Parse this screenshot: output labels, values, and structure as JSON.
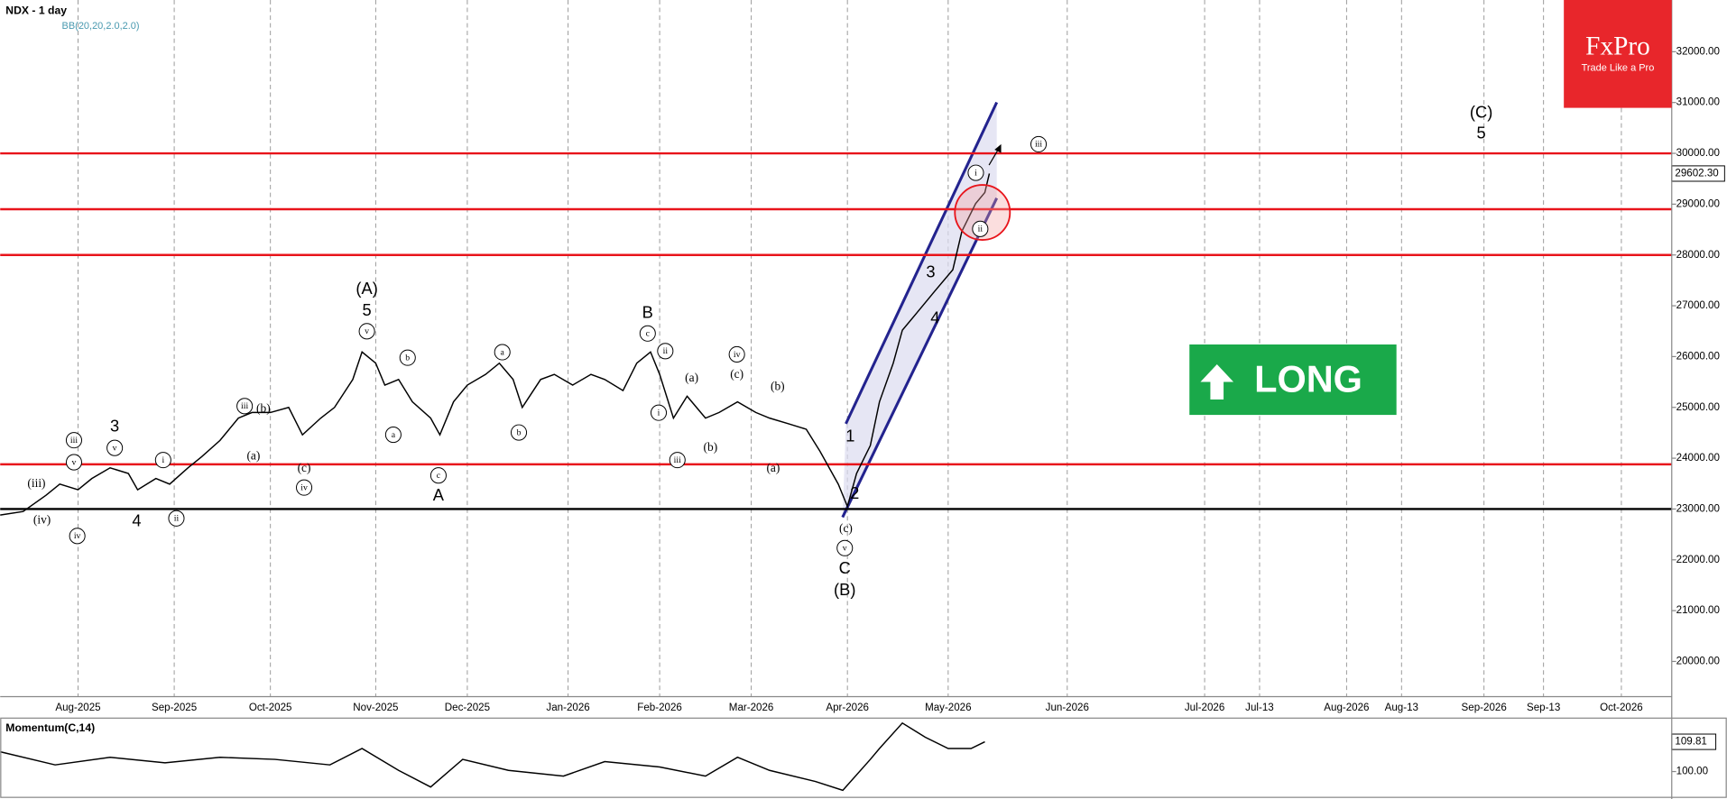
{
  "chart_data": [
    {
      "type": "line",
      "title": "NDX - 1 day",
      "subtitle": "BB(20,20,2.0,2.0)",
      "x": [
        0,
        5,
        10,
        13,
        17,
        20,
        24,
        28,
        30,
        34,
        37,
        41,
        44,
        48,
        52,
        55,
        59,
        63,
        66,
        70,
        73,
        77,
        79,
        82,
        84,
        87,
        90,
        94,
        96,
        99,
        102,
        106,
        109,
        112,
        114,
        118,
        121,
        125,
        129,
        132,
        136,
        139,
        142,
        144,
        147,
        150,
        154,
        157,
        161,
        165,
        168,
        172,
        176,
        179,
        183,
        185,
        187,
        190,
        192,
        195,
        197,
        201,
        204,
        208,
        210,
        213,
        215,
        216
      ],
      "series": [
        {
          "color": "#000000",
          "values": [
            22880,
            22950,
            23270,
            23490,
            23380,
            23600,
            23810,
            23700,
            23380,
            23600,
            23490,
            23810,
            24030,
            24350,
            24790,
            24900,
            24900,
            25000,
            24460,
            24790,
            25000,
            25550,
            26090,
            25870,
            25440,
            25550,
            25110,
            24790,
            24460,
            25110,
            25440,
            25650,
            25870,
            25550,
            25000,
            25550,
            25650,
            25440,
            25650,
            25550,
            25330,
            25870,
            26090,
            25650,
            24790,
            25220,
            24790,
            24900,
            25110,
            24900,
            24790,
            24680,
            24570,
            24140,
            23490,
            23050,
            23700,
            24250,
            25110,
            25870,
            26520,
            26950,
            27280,
            27710,
            28470,
            29010,
            29230,
            29602.3
          ]
        }
      ],
      "xlim": [
        0,
        365
      ],
      "ylim": [
        19307,
        33018
      ],
      "xticks": [
        {
          "value": 17,
          "label": "Aug-2025"
        },
        {
          "value": 38,
          "label": "Sep-2025"
        },
        {
          "value": 59,
          "label": "Oct-2025"
        },
        {
          "value": 82,
          "label": "Nov-2025"
        },
        {
          "value": 102,
          "label": "Dec-2025"
        },
        {
          "value": 124,
          "label": "Jan-2026"
        },
        {
          "value": 144,
          "label": "Feb-2026"
        },
        {
          "value": 164,
          "label": "Mar-2026"
        },
        {
          "value": 185,
          "label": "Apr-2026"
        },
        {
          "value": 207,
          "label": "May-2026"
        },
        {
          "value": 233,
          "label": "Jun-2026"
        },
        {
          "value": 263,
          "label": "Jul-2026"
        },
        {
          "value": 275,
          "label": "Jul-13"
        },
        {
          "value": 294,
          "label": "Aug-2026"
        },
        {
          "value": 306,
          "label": "Aug-13"
        },
        {
          "value": 324,
          "label": "Sep-2026"
        },
        {
          "value": 337,
          "label": "Sep-13"
        },
        {
          "value": 354,
          "label": "Oct-2026"
        }
      ],
      "yticks": [
        {
          "value": 20000,
          "label": "20000.00"
        },
        {
          "value": 21000,
          "label": "21000.00"
        },
        {
          "value": 22000,
          "label": "22000.00"
        },
        {
          "value": 23000,
          "label": "23000.00"
        },
        {
          "value": 24000,
          "label": "24000.00"
        },
        {
          "value": 25000,
          "label": "25000.00"
        },
        {
          "value": 26000,
          "label": "26000.00"
        },
        {
          "value": 27000,
          "label": "27000.00"
        },
        {
          "value": 28000,
          "label": "28000.00"
        },
        {
          "value": 29000,
          "label": "29000.00"
        },
        {
          "value": 30000,
          "label": "30000.00"
        },
        {
          "value": 31000,
          "label": "31000.00"
        },
        {
          "value": 32000,
          "label": "32000.00"
        }
      ],
      "levels": [
        {
          "value": 30000,
          "color": "#e8141b"
        },
        {
          "value": 28900,
          "color": "#e8141b"
        },
        {
          "value": 28000,
          "color": "#e8141b"
        },
        {
          "value": 23880,
          "color": "#e8141b"
        },
        {
          "value": 23000,
          "color": "#000000"
        }
      ],
      "last_price": {
        "value": 29602.3,
        "label": "29602.30"
      },
      "annotations": [
        {
          "text": "(A)"
        },
        {
          "text": "5"
        },
        {
          "text": "v",
          "circled": true
        },
        {
          "text": "3"
        },
        {
          "text": "v",
          "circled": true
        },
        {
          "text": "4"
        },
        {
          "text": "ii",
          "circled": true
        },
        {
          "text": "i",
          "circled": true
        },
        {
          "text": "iii",
          "circled": true
        },
        {
          "text": "v",
          "circled": true
        },
        {
          "text": "(iii)"
        },
        {
          "text": "(iv)"
        },
        {
          "text": "iv",
          "circled": true
        },
        {
          "text": "iii",
          "circled": true
        },
        {
          "text": "(b)"
        },
        {
          "text": "(a)"
        },
        {
          "text": "(c)"
        },
        {
          "text": "iv",
          "circled": true
        },
        {
          "text": "a",
          "circled": true
        },
        {
          "text": "b",
          "circled": true
        },
        {
          "text": "c",
          "circled": true
        },
        {
          "text": "A"
        },
        {
          "text": "a",
          "circled": true
        },
        {
          "text": "b",
          "circled": true
        },
        {
          "text": "B"
        },
        {
          "text": "c",
          "circled": true
        },
        {
          "text": "ii",
          "circled": true
        },
        {
          "text": "i",
          "circled": true
        },
        {
          "text": "iii",
          "circled": true
        },
        {
          "text": "(a)"
        },
        {
          "text": "(b)"
        },
        {
          "text": "iv",
          "circled": true
        },
        {
          "text": "(c)"
        },
        {
          "text": "(b)"
        },
        {
          "text": "(a)"
        },
        {
          "text": "1"
        },
        {
          "text": "2"
        },
        {
          "text": "(c)"
        },
        {
          "text": "v",
          "circled": true
        },
        {
          "text": "C"
        },
        {
          "text": "(B)"
        },
        {
          "text": "3"
        },
        {
          "text": "4"
        },
        {
          "text": "i",
          "circled": true
        },
        {
          "text": "ii",
          "circled": true
        },
        {
          "text": "iii",
          "circled": true
        },
        {
          "text": "(C)"
        },
        {
          "text": "5"
        }
      ],
      "badge": "LONG",
      "grid": true
    },
    {
      "type": "line",
      "title": "Momentum(C,14)",
      "x": [
        0,
        12,
        24,
        36,
        48,
        60,
        72,
        79,
        87,
        94,
        101,
        111,
        123,
        132,
        144,
        154,
        161,
        168,
        178,
        184,
        190,
        192,
        197,
        202,
        207,
        212,
        215
      ],
      "series": [
        {
          "color": "#000000",
          "values": [
            106.5,
            102.2,
            104.7,
            102.9,
            104.7,
            104,
            102.2,
            107.6,
            100.4,
            94.9,
            104,
            100.4,
            98.5,
            103.3,
            101.5,
            98.5,
            104.7,
            100.4,
            96.7,
            93.8,
            104,
            107.6,
            116,
            111.3,
            107.6,
            107.6,
            109.81
          ]
        }
      ],
      "xlim": [
        0,
        365
      ],
      "ylim": [
        92.4,
        117.8
      ],
      "yticks": [
        {
          "value": 100,
          "label": "100.00"
        }
      ]
    }
  ],
  "logo": {
    "name": "FxPro",
    "tagline": "Trade Like a Pro"
  }
}
